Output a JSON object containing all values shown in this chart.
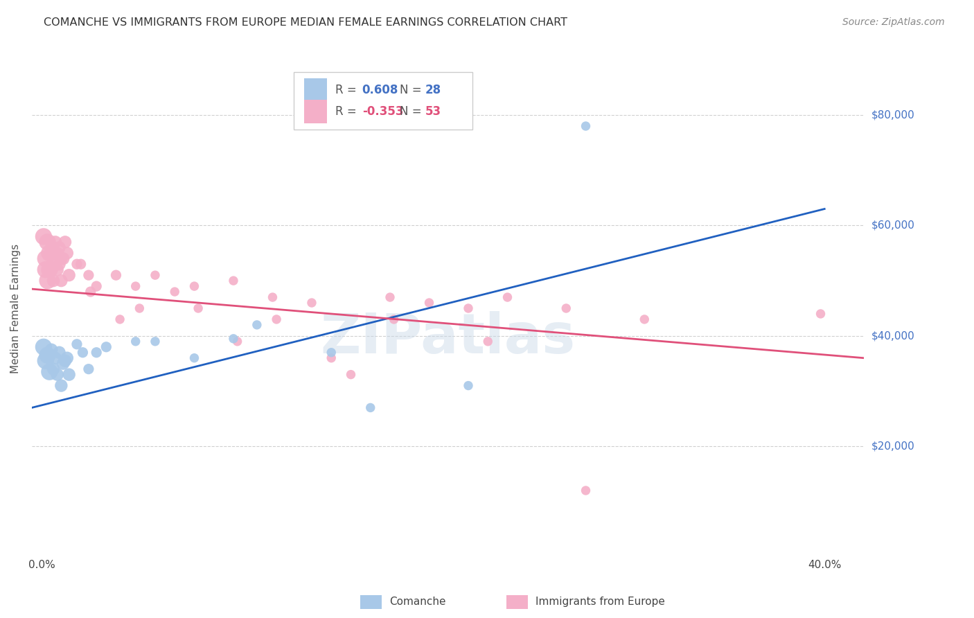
{
  "title": "COMANCHE VS IMMIGRANTS FROM EUROPE MEDIAN FEMALE EARNINGS CORRELATION CHART",
  "source": "Source: ZipAtlas.com",
  "ylabel": "Median Female Earnings",
  "xlabel_ticks": [
    "0.0%",
    "",
    "",
    "",
    "40.0%"
  ],
  "xlabel_tick_vals": [
    0.0,
    0.1,
    0.2,
    0.3,
    0.4
  ],
  "ytick_labels": [
    "$20,000",
    "$40,000",
    "$60,000",
    "$80,000"
  ],
  "ytick_vals": [
    20000,
    40000,
    60000,
    80000
  ],
  "xlim": [
    -0.005,
    0.42
  ],
  "ylim": [
    0,
    90000
  ],
  "legend_r_blue": "0.608",
  "legend_n_blue": "28",
  "legend_r_pink": "-0.353",
  "legend_n_pink": "53",
  "comanche_color": "#a8c8e8",
  "europe_color": "#f4afc8",
  "blue_line_color": "#2060c0",
  "pink_line_color": "#e0507a",
  "watermark": "ZIPatlas",
  "comanche_points": [
    [
      0.001,
      38000
    ],
    [
      0.002,
      35500
    ],
    [
      0.003,
      36500
    ],
    [
      0.004,
      33500
    ],
    [
      0.005,
      37500
    ],
    [
      0.006,
      34000
    ],
    [
      0.007,
      36000
    ],
    [
      0.008,
      33000
    ],
    [
      0.009,
      37000
    ],
    [
      0.01,
      31000
    ],
    [
      0.011,
      35000
    ],
    [
      0.012,
      35500
    ],
    [
      0.013,
      36000
    ],
    [
      0.014,
      33000
    ],
    [
      0.018,
      38500
    ],
    [
      0.021,
      37000
    ],
    [
      0.024,
      34000
    ],
    [
      0.028,
      37000
    ],
    [
      0.033,
      38000
    ],
    [
      0.048,
      39000
    ],
    [
      0.058,
      39000
    ],
    [
      0.078,
      36000
    ],
    [
      0.098,
      39500
    ],
    [
      0.11,
      42000
    ],
    [
      0.148,
      37000
    ],
    [
      0.168,
      27000
    ],
    [
      0.218,
      31000
    ],
    [
      0.278,
      78000
    ]
  ],
  "europe_points": [
    [
      0.001,
      58000
    ],
    [
      0.002,
      52000
    ],
    [
      0.002,
      54000
    ],
    [
      0.003,
      57000
    ],
    [
      0.003,
      50000
    ],
    [
      0.004,
      55000
    ],
    [
      0.004,
      52000
    ],
    [
      0.005,
      56000
    ],
    [
      0.005,
      52000
    ],
    [
      0.006,
      55000
    ],
    [
      0.006,
      50000
    ],
    [
      0.007,
      57000
    ],
    [
      0.007,
      54000
    ],
    [
      0.008,
      55000
    ],
    [
      0.008,
      52000
    ],
    [
      0.009,
      56000
    ],
    [
      0.009,
      53000
    ],
    [
      0.01,
      54000
    ],
    [
      0.01,
      50000
    ],
    [
      0.011,
      54000
    ],
    [
      0.012,
      57000
    ],
    [
      0.013,
      55000
    ],
    [
      0.014,
      51000
    ],
    [
      0.018,
      53000
    ],
    [
      0.02,
      53000
    ],
    [
      0.024,
      51000
    ],
    [
      0.025,
      48000
    ],
    [
      0.028,
      49000
    ],
    [
      0.038,
      51000
    ],
    [
      0.04,
      43000
    ],
    [
      0.048,
      49000
    ],
    [
      0.05,
      45000
    ],
    [
      0.058,
      51000
    ],
    [
      0.068,
      48000
    ],
    [
      0.078,
      49000
    ],
    [
      0.08,
      45000
    ],
    [
      0.098,
      50000
    ],
    [
      0.1,
      39000
    ],
    [
      0.118,
      47000
    ],
    [
      0.12,
      43000
    ],
    [
      0.138,
      46000
    ],
    [
      0.148,
      36000
    ],
    [
      0.158,
      33000
    ],
    [
      0.178,
      47000
    ],
    [
      0.18,
      43000
    ],
    [
      0.198,
      46000
    ],
    [
      0.218,
      45000
    ],
    [
      0.228,
      39000
    ],
    [
      0.238,
      47000
    ],
    [
      0.268,
      45000
    ],
    [
      0.278,
      12000
    ],
    [
      0.308,
      43000
    ],
    [
      0.398,
      44000
    ]
  ],
  "blue_line": {
    "x0": -0.005,
    "y0": 27000,
    "x1": 0.4,
    "y1": 63000
  },
  "pink_line": {
    "x0": -0.005,
    "y0": 48500,
    "x1": 0.42,
    "y1": 36000
  },
  "background_color": "#ffffff",
  "plot_bg_color": "#ffffff",
  "grid_color": "#d0d0d0"
}
